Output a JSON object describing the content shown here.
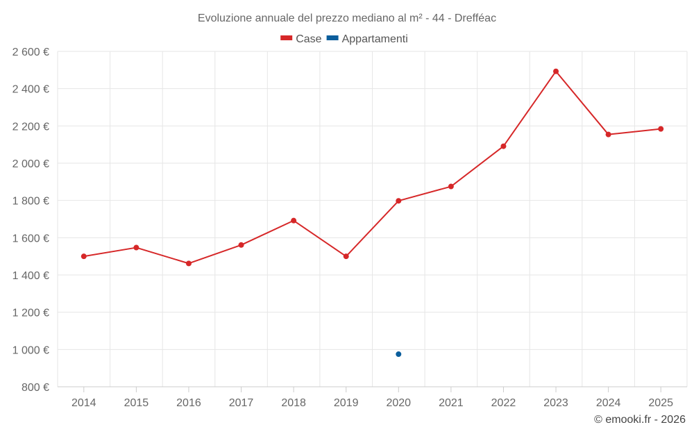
{
  "chart_data": {
    "type": "line",
    "title": "Evoluzione annuale del prezzo mediano al m² - 44 - Drefféac",
    "credit": "© emooki.fr - 2026",
    "categories": [
      "2014",
      "2015",
      "2016",
      "2017",
      "2018",
      "2019",
      "2020",
      "2021",
      "2022",
      "2023",
      "2024",
      "2025"
    ],
    "ylim": [
      800,
      2600
    ],
    "yticks": [
      800,
      1000,
      1200,
      1400,
      1600,
      1800,
      2000,
      2200,
      2400,
      2600
    ],
    "ytick_labels": [
      "800 €",
      "1 000 €",
      "1 200 €",
      "1 400 €",
      "1 600 €",
      "1 800 €",
      "2 000 €",
      "2 200 €",
      "2 400 €",
      "2 600 €"
    ],
    "grid": true,
    "legend_position": "top-center",
    "series": [
      {
        "name": "Case",
        "color": "#d62728",
        "values": [
          1500,
          1547,
          1462,
          1561,
          1692,
          1500,
          1798,
          1875,
          2091,
          2493,
          2154,
          2184
        ]
      },
      {
        "name": "Appartamenti",
        "color": "#0b5e9c",
        "values": [
          null,
          null,
          null,
          null,
          null,
          null,
          975,
          null,
          null,
          null,
          null,
          null
        ]
      }
    ]
  }
}
